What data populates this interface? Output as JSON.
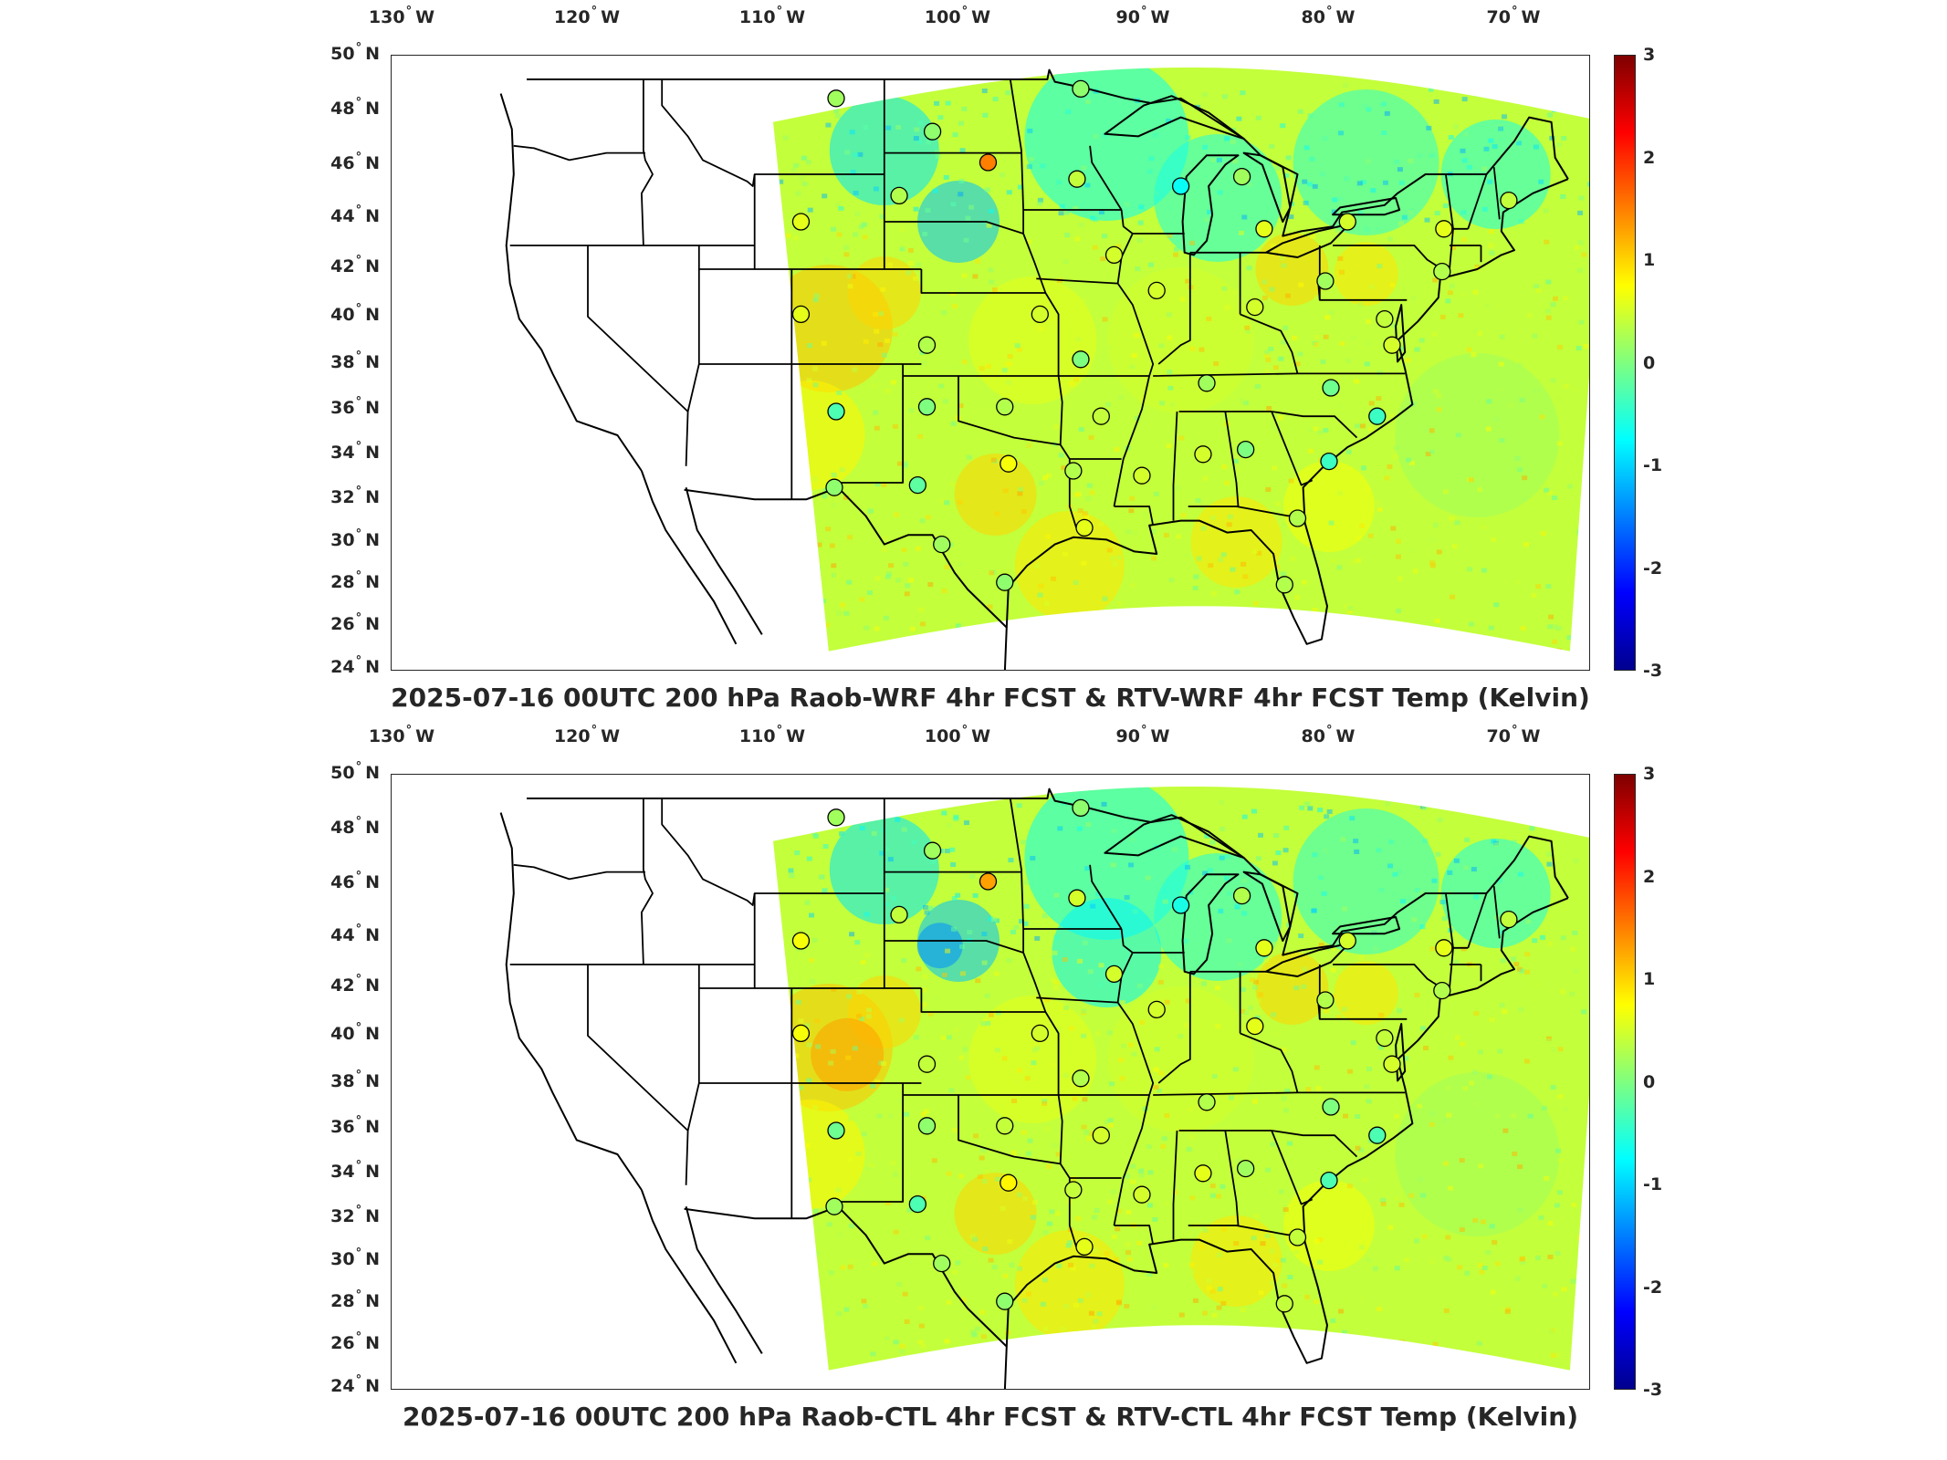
{
  "colors": {
    "land_outline": "#000000",
    "frame": "#262626",
    "colormap": [
      "#00008f",
      "#0000ff",
      "#007fff",
      "#00ffff",
      "#7fff7f",
      "#ffff00",
      "#ff7f00",
      "#ff0000",
      "#7f0000"
    ]
  },
  "colorbar": {
    "min": -3,
    "max": 3,
    "ticks": [
      "3",
      "2",
      "1",
      "0",
      "-1",
      "-2",
      "-3"
    ]
  },
  "longitude_ticks": [
    {
      "deg": "130",
      "hemi": "W"
    },
    {
      "deg": "120",
      "hemi": "W"
    },
    {
      "deg": "110",
      "hemi": "W"
    },
    {
      "deg": "100",
      "hemi": "W"
    },
    {
      "deg": "90",
      "hemi": "W"
    },
    {
      "deg": "80",
      "hemi": "W"
    },
    {
      "deg": "70",
      "hemi": "W"
    }
  ],
  "latitude_ticks": [
    {
      "deg": "50",
      "hemi": "N"
    },
    {
      "deg": "48",
      "hemi": "N"
    },
    {
      "deg": "46",
      "hemi": "N"
    },
    {
      "deg": "44",
      "hemi": "N"
    },
    {
      "deg": "42",
      "hemi": "N"
    },
    {
      "deg": "40",
      "hemi": "N"
    },
    {
      "deg": "38",
      "hemi": "N"
    },
    {
      "deg": "36",
      "hemi": "N"
    },
    {
      "deg": "34",
      "hemi": "N"
    },
    {
      "deg": "32",
      "hemi": "N"
    },
    {
      "deg": "30",
      "hemi": "N"
    },
    {
      "deg": "28",
      "hemi": "N"
    },
    {
      "deg": "26",
      "hemi": "N"
    },
    {
      "deg": "24",
      "hemi": "N"
    }
  ],
  "panels": [
    {
      "id": "top",
      "title": "2025-07-16 00UTC 200 hPa Raob-WRF 4hr FCST & RTV-WRF 4hr FCST Temp (Kelvin)"
    },
    {
      "id": "bottom",
      "title": "2025-07-16 00UTC 200 hPa Raob-CTL 4hr FCST & RTV-CTL 4hr FCST Temp (Kelvin)"
    }
  ],
  "stations": {
    "top": [
      {
        "lon": -106.6,
        "lat": 48.2,
        "value": 0.2
      },
      {
        "lon": -101.4,
        "lat": 46.8,
        "value": 0.1
      },
      {
        "lon": -98.4,
        "lat": 45.5,
        "value": 1.5
      },
      {
        "lon": -103.2,
        "lat": 44.1,
        "value": 0.3
      },
      {
        "lon": -108.5,
        "lat": 43.0,
        "value": 0.6
      },
      {
        "lon": -93.6,
        "lat": 44.8,
        "value": 0.4
      },
      {
        "lon": -93.4,
        "lat": 48.6,
        "value": 0.1
      },
      {
        "lon": -88.0,
        "lat": 44.5,
        "value": -0.7
      },
      {
        "lon": -84.7,
        "lat": 44.9,
        "value": 0.2
      },
      {
        "lon": -83.5,
        "lat": 42.7,
        "value": 0.6
      },
      {
        "lon": -79.0,
        "lat": 43.0,
        "value": 0.5
      },
      {
        "lon": -73.8,
        "lat": 42.7,
        "value": 0.6
      },
      {
        "lon": -70.3,
        "lat": 43.9,
        "value": 0.4
      },
      {
        "lon": -91.6,
        "lat": 41.6,
        "value": 0.5
      },
      {
        "lon": -89.3,
        "lat": 40.1,
        "value": 0.5
      },
      {
        "lon": -84.0,
        "lat": 39.4,
        "value": 0.5
      },
      {
        "lon": -80.2,
        "lat": 40.5,
        "value": 0.2
      },
      {
        "lon": -73.9,
        "lat": 40.9,
        "value": 0.3
      },
      {
        "lon": -77.0,
        "lat": 38.9,
        "value": 0.4
      },
      {
        "lon": -76.6,
        "lat": 37.8,
        "value": 0.5
      },
      {
        "lon": -108.5,
        "lat": 39.1,
        "value": 0.6
      },
      {
        "lon": -101.7,
        "lat": 37.8,
        "value": 0.3
      },
      {
        "lon": -95.6,
        "lat": 39.1,
        "value": 0.5
      },
      {
        "lon": -93.4,
        "lat": 37.2,
        "value": 0.0
      },
      {
        "lon": -86.6,
        "lat": 36.2,
        "value": 0.2
      },
      {
        "lon": -79.9,
        "lat": 36.0,
        "value": -0.1
      },
      {
        "lon": -106.6,
        "lat": 35.0,
        "value": -0.3
      },
      {
        "lon": -101.7,
        "lat": 35.2,
        "value": 0.0
      },
      {
        "lon": -97.5,
        "lat": 35.2,
        "value": 0.3
      },
      {
        "lon": -92.3,
        "lat": 34.8,
        "value": 0.4
      },
      {
        "lon": -86.8,
        "lat": 33.2,
        "value": 0.5
      },
      {
        "lon": -84.5,
        "lat": 33.4,
        "value": 0.0
      },
      {
        "lon": -77.4,
        "lat": 34.8,
        "value": -0.4
      },
      {
        "lon": -80.0,
        "lat": 32.9,
        "value": -0.4
      },
      {
        "lon": -97.3,
        "lat": 32.8,
        "value": 0.7
      },
      {
        "lon": -93.8,
        "lat": 32.5,
        "value": 0.3
      },
      {
        "lon": -90.1,
        "lat": 32.3,
        "value": 0.5
      },
      {
        "lon": -106.7,
        "lat": 31.8,
        "value": 0.1
      },
      {
        "lon": -102.2,
        "lat": 31.9,
        "value": -0.2
      },
      {
        "lon": -93.2,
        "lat": 30.1,
        "value": 0.6
      },
      {
        "lon": -81.7,
        "lat": 30.5,
        "value": 0.3
      },
      {
        "lon": -100.9,
        "lat": 29.4,
        "value": 0.2
      },
      {
        "lon": -97.5,
        "lat": 27.8,
        "value": 0.1
      },
      {
        "lon": -82.4,
        "lat": 27.7,
        "value": 0.3
      }
    ],
    "bottom": [
      {
        "lon": -106.6,
        "lat": 48.2,
        "value": 0.2
      },
      {
        "lon": -101.4,
        "lat": 46.8,
        "value": 0.2
      },
      {
        "lon": -98.4,
        "lat": 45.5,
        "value": 1.3
      },
      {
        "lon": -103.2,
        "lat": 44.1,
        "value": 0.4
      },
      {
        "lon": -108.5,
        "lat": 43.0,
        "value": 0.7
      },
      {
        "lon": -93.6,
        "lat": 44.8,
        "value": 0.5
      },
      {
        "lon": -93.4,
        "lat": 48.6,
        "value": 0.1
      },
      {
        "lon": -88.0,
        "lat": 44.5,
        "value": -0.6
      },
      {
        "lon": -84.7,
        "lat": 44.9,
        "value": 0.3
      },
      {
        "lon": -83.5,
        "lat": 42.7,
        "value": 0.6
      },
      {
        "lon": -79.0,
        "lat": 43.0,
        "value": 0.5
      },
      {
        "lon": -73.8,
        "lat": 42.7,
        "value": 0.6
      },
      {
        "lon": -70.3,
        "lat": 43.9,
        "value": 0.4
      },
      {
        "lon": -91.6,
        "lat": 41.6,
        "value": 0.5
      },
      {
        "lon": -89.3,
        "lat": 40.1,
        "value": 0.5
      },
      {
        "lon": -84.0,
        "lat": 39.4,
        "value": 0.6
      },
      {
        "lon": -80.2,
        "lat": 40.5,
        "value": 0.3
      },
      {
        "lon": -73.9,
        "lat": 40.9,
        "value": 0.3
      },
      {
        "lon": -77.0,
        "lat": 38.9,
        "value": 0.4
      },
      {
        "lon": -76.6,
        "lat": 37.8,
        "value": 0.5
      },
      {
        "lon": -108.5,
        "lat": 39.1,
        "value": 0.7
      },
      {
        "lon": -101.7,
        "lat": 37.8,
        "value": 0.4
      },
      {
        "lon": -95.6,
        "lat": 39.1,
        "value": 0.5
      },
      {
        "lon": -93.4,
        "lat": 37.2,
        "value": 0.3
      },
      {
        "lon": -86.6,
        "lat": 36.2,
        "value": 0.3
      },
      {
        "lon": -79.9,
        "lat": 36.0,
        "value": 0.0
      },
      {
        "lon": -106.6,
        "lat": 35.0,
        "value": -0.1
      },
      {
        "lon": -101.7,
        "lat": 35.2,
        "value": 0.1
      },
      {
        "lon": -97.5,
        "lat": 35.2,
        "value": 0.4
      },
      {
        "lon": -92.3,
        "lat": 34.8,
        "value": 0.5
      },
      {
        "lon": -86.8,
        "lat": 33.2,
        "value": 0.6
      },
      {
        "lon": -84.5,
        "lat": 33.4,
        "value": 0.2
      },
      {
        "lon": -77.4,
        "lat": 34.8,
        "value": -0.3
      },
      {
        "lon": -80.0,
        "lat": 32.9,
        "value": -0.3
      },
      {
        "lon": -97.3,
        "lat": 32.8,
        "value": 0.8
      },
      {
        "lon": -93.8,
        "lat": 32.5,
        "value": 0.4
      },
      {
        "lon": -90.1,
        "lat": 32.3,
        "value": 0.5
      },
      {
        "lon": -106.7,
        "lat": 31.8,
        "value": 0.2
      },
      {
        "lon": -102.2,
        "lat": 31.9,
        "value": -0.3
      },
      {
        "lon": -93.2,
        "lat": 30.1,
        "value": 0.6
      },
      {
        "lon": -81.7,
        "lat": 30.5,
        "value": 0.4
      },
      {
        "lon": -100.9,
        "lat": 29.4,
        "value": 0.2
      },
      {
        "lon": -97.5,
        "lat": 27.8,
        "value": 0.1
      },
      {
        "lon": -82.4,
        "lat": 27.7,
        "value": 0.4
      }
    ]
  }
}
